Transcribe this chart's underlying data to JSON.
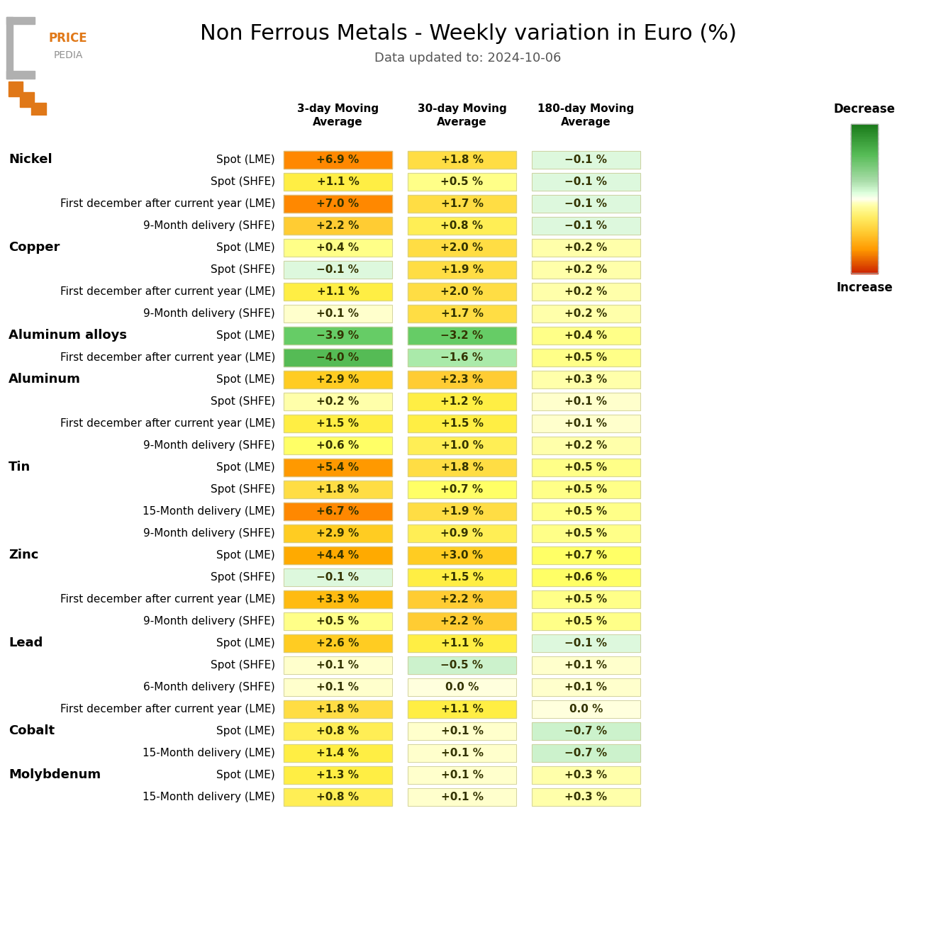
{
  "title": "Non Ferrous Metals - Weekly variation in Euro (%)",
  "subtitle": "Data updated to: 2024-10-06",
  "columns": [
    "3-day Moving\nAverage",
    "30-day Moving\nAverage",
    "180-day Moving\nAverage"
  ],
  "rows": [
    {
      "metal": "Nickel",
      "label": "Spot (LME)",
      "values": [
        6.9,
        1.8,
        -0.1
      ]
    },
    {
      "metal": "",
      "label": "Spot (SHFE)",
      "values": [
        1.1,
        0.5,
        -0.1
      ]
    },
    {
      "metal": "",
      "label": "First december after current year (LME)",
      "values": [
        7.0,
        1.7,
        -0.1
      ]
    },
    {
      "metal": "",
      "label": "9-Month delivery (SHFE)",
      "values": [
        2.2,
        0.8,
        -0.1
      ]
    },
    {
      "metal": "Copper",
      "label": "Spot (LME)",
      "values": [
        0.4,
        2.0,
        0.2
      ]
    },
    {
      "metal": "",
      "label": "Spot (SHFE)",
      "values": [
        -0.1,
        1.9,
        0.2
      ]
    },
    {
      "metal": "",
      "label": "First december after current year (LME)",
      "values": [
        1.1,
        2.0,
        0.2
      ]
    },
    {
      "metal": "",
      "label": "9-Month delivery (SHFE)",
      "values": [
        0.1,
        1.7,
        0.2
      ]
    },
    {
      "metal": "Aluminum alloys",
      "label": "Spot (LME)",
      "values": [
        -3.9,
        -3.2,
        0.4
      ]
    },
    {
      "metal": "",
      "label": "First december after current year (LME)",
      "values": [
        -4.0,
        -1.6,
        0.5
      ]
    },
    {
      "metal": "Aluminum",
      "label": "Spot (LME)",
      "values": [
        2.9,
        2.3,
        0.3
      ]
    },
    {
      "metal": "",
      "label": "Spot (SHFE)",
      "values": [
        0.2,
        1.2,
        0.1
      ]
    },
    {
      "metal": "",
      "label": "First december after current year (LME)",
      "values": [
        1.5,
        1.5,
        0.1
      ]
    },
    {
      "metal": "",
      "label": "9-Month delivery (SHFE)",
      "values": [
        0.6,
        1.0,
        0.2
      ]
    },
    {
      "metal": "Tin",
      "label": "Spot (LME)",
      "values": [
        5.4,
        1.8,
        0.5
      ]
    },
    {
      "metal": "",
      "label": "Spot (SHFE)",
      "values": [
        1.8,
        0.7,
        0.5
      ]
    },
    {
      "metal": "",
      "label": "15-Month delivery (LME)",
      "values": [
        6.7,
        1.9,
        0.5
      ]
    },
    {
      "metal": "",
      "label": "9-Month delivery (SHFE)",
      "values": [
        2.9,
        0.9,
        0.5
      ]
    },
    {
      "metal": "Zinc",
      "label": "Spot (LME)",
      "values": [
        4.4,
        3.0,
        0.7
      ]
    },
    {
      "metal": "",
      "label": "Spot (SHFE)",
      "values": [
        -0.1,
        1.5,
        0.6
      ]
    },
    {
      "metal": "",
      "label": "First december after current year (LME)",
      "values": [
        3.3,
        2.2,
        0.5
      ]
    },
    {
      "metal": "",
      "label": "9-Month delivery (SHFE)",
      "values": [
        0.5,
        2.2,
        0.5
      ]
    },
    {
      "metal": "Lead",
      "label": "Spot (LME)",
      "values": [
        2.6,
        1.1,
        -0.1
      ]
    },
    {
      "metal": "",
      "label": "Spot (SHFE)",
      "values": [
        0.1,
        -0.5,
        0.1
      ]
    },
    {
      "metal": "",
      "label": "6-Month delivery (SHFE)",
      "values": [
        0.1,
        0.0,
        0.1
      ]
    },
    {
      "metal": "",
      "label": "First december after current year (LME)",
      "values": [
        1.8,
        1.1,
        0.0
      ]
    },
    {
      "metal": "Cobalt",
      "label": "Spot (LME)",
      "values": [
        0.8,
        0.1,
        -0.7
      ]
    },
    {
      "metal": "",
      "label": "15-Month delivery (LME)",
      "values": [
        1.4,
        0.1,
        -0.7
      ]
    },
    {
      "metal": "Molybdenum",
      "label": "Spot (LME)",
      "values": [
        1.3,
        0.1,
        0.3
      ]
    },
    {
      "metal": "",
      "label": "15-Month delivery (LME)",
      "values": [
        0.8,
        0.1,
        0.3
      ]
    }
  ],
  "colorbar_colors": [
    [
      0.0,
      "#1a7a1a"
    ],
    [
      0.2,
      "#55bb55"
    ],
    [
      0.38,
      "#aaddaa"
    ],
    [
      0.46,
      "#ddffdd"
    ],
    [
      0.5,
      "#ffffee"
    ],
    [
      0.54,
      "#ffffaa"
    ],
    [
      0.62,
      "#ffee66"
    ],
    [
      0.72,
      "#ffcc33"
    ],
    [
      0.84,
      "#ff9900"
    ],
    [
      1.0,
      "#cc2200"
    ]
  ]
}
